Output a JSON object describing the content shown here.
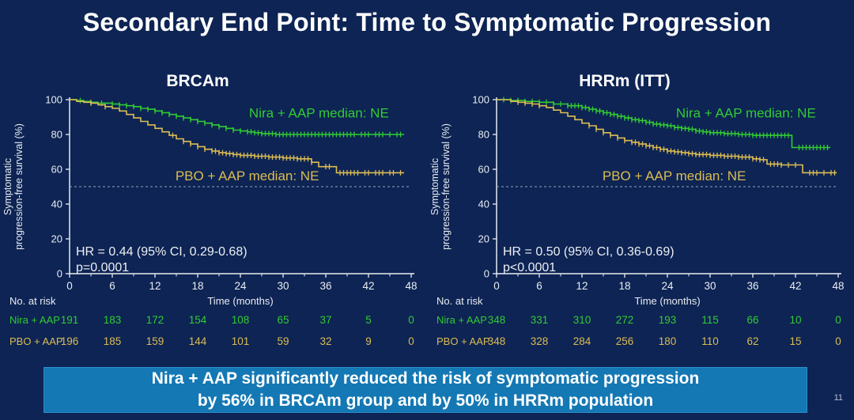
{
  "slide": {
    "title": "Secondary End Point: Time to Symptomatic Progression",
    "page_number": "11",
    "banner": {
      "line1": "Nira + AAP significantly reduced the risk of symptomatic progression",
      "line2": "by 56% in BRCAm group and by 50% in HRRm population"
    }
  },
  "colors": {
    "background": "#0D2454",
    "title_text": "#FFFFFF",
    "axis": "#E9ECF2",
    "annotation_text": "#EDEFF3",
    "nira_green": "#32CB32",
    "pbo_yellow": "#DCBC52",
    "reference_dash": "#98A4BA",
    "banner_bg": "#1478B4",
    "banner_text": "#FFFFFF"
  },
  "chart_data": [
    {
      "type": "line",
      "subtype": "kaplan-meier",
      "title": "BRCAm",
      "xlabel": "Time (months)",
      "ylabel": [
        "Symptomatic",
        "progression-free survival (%)"
      ],
      "xlim": [
        0,
        48
      ],
      "ylim": [
        0,
        100
      ],
      "xticks": [
        0,
        6,
        12,
        18,
        24,
        30,
        36,
        42,
        48
      ],
      "yticks": [
        0,
        20,
        40,
        60,
        80,
        100
      ],
      "grid": false,
      "reference_line_y": 50,
      "annotations": {
        "hr": "HR = 0.44 (95% CI, 0.29-0.68)",
        "p": "p=0.0001"
      },
      "series": [
        {
          "name": "Nira + AAP",
          "legend": "Nira + AAP median: NE",
          "median": "NE",
          "color_key": "nira_green",
          "points": [
            [
              0,
              100
            ],
            [
              1,
              99.5
            ],
            [
              2,
              99
            ],
            [
              3,
              98.5
            ],
            [
              4,
              98
            ],
            [
              6,
              97.5
            ],
            [
              7,
              97
            ],
            [
              8,
              96.5
            ],
            [
              9,
              96
            ],
            [
              10,
              95
            ],
            [
              11,
              94.5
            ],
            [
              12,
              93.5
            ],
            [
              13,
              92.5
            ],
            [
              14,
              91.5
            ],
            [
              15,
              90.5
            ],
            [
              16,
              89.5
            ],
            [
              17,
              88.5
            ],
            [
              18,
              87.5
            ],
            [
              19,
              86.5
            ],
            [
              20,
              85.5
            ],
            [
              21,
              84.5
            ],
            [
              22,
              83.5
            ],
            [
              23,
              82.5
            ],
            [
              24,
              82
            ],
            [
              25,
              81.5
            ],
            [
              26,
              81
            ],
            [
              27,
              80.5
            ],
            [
              29,
              80
            ],
            [
              47,
              80
            ]
          ],
          "censor_months": [
            1.5,
            3,
            4.5,
            6,
            7,
            8,
            9,
            10,
            11,
            12,
            13,
            14,
            15,
            16,
            17,
            18,
            19,
            20,
            21,
            22,
            23,
            24,
            25,
            25.5,
            26,
            26.5,
            27,
            27.5,
            28,
            28.5,
            29,
            29.5,
            30,
            30.5,
            31,
            31.5,
            32,
            32.5,
            33,
            33.5,
            34,
            34.5,
            35,
            35.5,
            36,
            36.5,
            37,
            37.5,
            38,
            38.5,
            39,
            39.5,
            40,
            41,
            41.5,
            42,
            43,
            43.5,
            44,
            45,
            46,
            46.5
          ]
        },
        {
          "name": "PBO + AAP",
          "legend": "PBO + AAP median: NE",
          "median": "NE",
          "color_key": "pbo_yellow",
          "points": [
            [
              0,
              100
            ],
            [
              1,
              99
            ],
            [
              2,
              98.5
            ],
            [
              3,
              98
            ],
            [
              4,
              97
            ],
            [
              5,
              96
            ],
            [
              6,
              95
            ],
            [
              7,
              93.5
            ],
            [
              8,
              91.5
            ],
            [
              9,
              89.5
            ],
            [
              10,
              87.5
            ],
            [
              11,
              85.5
            ],
            [
              12,
              83.5
            ],
            [
              13,
              81.5
            ],
            [
              14,
              79.5
            ],
            [
              15,
              77.5
            ],
            [
              16,
              76
            ],
            [
              17,
              74.5
            ],
            [
              18,
              73
            ],
            [
              19,
              71.5
            ],
            [
              20,
              70.5
            ],
            [
              21,
              69.5
            ],
            [
              22,
              69
            ],
            [
              23,
              68.5
            ],
            [
              24,
              68
            ],
            [
              26,
              67.5
            ],
            [
              28,
              67
            ],
            [
              30,
              66.5
            ],
            [
              32,
              66
            ],
            [
              34,
              64
            ],
            [
              35,
              61.5
            ],
            [
              37.5,
              58
            ],
            [
              47,
              58
            ]
          ],
          "censor_months": [
            3,
            5,
            14.5,
            16,
            17,
            18,
            19,
            20,
            20.5,
            21,
            21.5,
            22,
            22.5,
            23,
            23.5,
            24,
            24.5,
            25,
            25.5,
            26,
            26.5,
            27,
            27.5,
            28,
            28.5,
            29,
            29.5,
            30,
            30.5,
            31,
            31.5,
            32,
            32.5,
            33,
            33.5,
            34,
            36,
            36.5,
            38,
            38.5,
            39,
            39.5,
            40,
            40.5,
            41.5,
            42,
            43,
            43.5,
            44,
            45,
            45.5,
            46.5
          ]
        }
      ],
      "risk_table": {
        "label": "No. at risk",
        "time_points": [
          0,
          6,
          12,
          18,
          24,
          30,
          36,
          42,
          48
        ],
        "rows": [
          {
            "name": "Nira + AAP",
            "color_key": "nira_green",
            "values": [
              191,
              183,
              172,
              154,
              108,
              65,
              37,
              5,
              0
            ]
          },
          {
            "name": "PBO + AAP",
            "color_key": "pbo_yellow",
            "values": [
              196,
              185,
              159,
              144,
              101,
              59,
              32,
              9,
              0
            ]
          }
        ]
      }
    },
    {
      "type": "line",
      "subtype": "kaplan-meier",
      "title": "HRRm (ITT)",
      "xlabel": "Time (months)",
      "ylabel": [
        "Symptomatic",
        "progression-free survival (%)"
      ],
      "xlim": [
        0,
        48
      ],
      "ylim": [
        0,
        100
      ],
      "xticks": [
        0,
        6,
        12,
        18,
        24,
        30,
        36,
        42,
        48
      ],
      "yticks": [
        0,
        20,
        40,
        60,
        80,
        100
      ],
      "grid": false,
      "reference_line_y": 50,
      "annotations": {
        "hr": "HR = 0.50 (95% CI, 0.36-0.69)",
        "p": "p<0.0001"
      },
      "series": [
        {
          "name": "Nira + AAP",
          "legend": "Nira + AAP median: NE",
          "median": "NE",
          "color_key": "nira_green",
          "points": [
            [
              0,
              100
            ],
            [
              2,
              99.5
            ],
            [
              4,
              99
            ],
            [
              6,
              98.5
            ],
            [
              8,
              97.5
            ],
            [
              10,
              96.5
            ],
            [
              12,
              95.5
            ],
            [
              13,
              94.5
            ],
            [
              14,
              93.5
            ],
            [
              15,
              92.5
            ],
            [
              16,
              91.5
            ],
            [
              17,
              90.5
            ],
            [
              18,
              89.5
            ],
            [
              19,
              88.5
            ],
            [
              20,
              88
            ],
            [
              21,
              87
            ],
            [
              22,
              86
            ],
            [
              23,
              85.5
            ],
            [
              24,
              85
            ],
            [
              25,
              84
            ],
            [
              26,
              83.5
            ],
            [
              27,
              83
            ],
            [
              28,
              82
            ],
            [
              29,
              81.5
            ],
            [
              30,
              81
            ],
            [
              32,
              80.5
            ],
            [
              34,
              80
            ],
            [
              36,
              79.5
            ],
            [
              41.5,
              72.5
            ],
            [
              46.9,
              72.5
            ]
          ],
          "censor_months": [
            1,
            2,
            3,
            4,
            5,
            6,
            7,
            8,
            9,
            10,
            10.5,
            11,
            11.5,
            12,
            12.5,
            13,
            13.5,
            14,
            14.5,
            15,
            15.5,
            16,
            16.5,
            17,
            17.5,
            18,
            18.5,
            19,
            19.5,
            20,
            20.5,
            21,
            21.5,
            22,
            22.5,
            23,
            23.5,
            24,
            24.5,
            25,
            25.5,
            26,
            26.5,
            27,
            27.5,
            28,
            28.5,
            29,
            29.5,
            30,
            30.5,
            31,
            31.5,
            32,
            32.5,
            33,
            33.5,
            34,
            34.5,
            35,
            35.5,
            36,
            36.5,
            37,
            37.5,
            38,
            38.5,
            39,
            39.5,
            40,
            40.5,
            41,
            42.5,
            43,
            43.5,
            44,
            44.5,
            45,
            45.5,
            46,
            46.5
          ]
        },
        {
          "name": "PBO + AAP",
          "legend": "PBO + AAP median: NE",
          "median": "NE",
          "color_key": "pbo_yellow",
          "points": [
            [
              0,
              100
            ],
            [
              2,
              99
            ],
            [
              3,
              98.5
            ],
            [
              4,
              98
            ],
            [
              5,
              97.5
            ],
            [
              6,
              96.5
            ],
            [
              7,
              95.5
            ],
            [
              8,
              94
            ],
            [
              9,
              92.5
            ],
            [
              10,
              90.5
            ],
            [
              11,
              88.5
            ],
            [
              12,
              86.5
            ],
            [
              13,
              85
            ],
            [
              14,
              83
            ],
            [
              15,
              81
            ],
            [
              16,
              79.5
            ],
            [
              17,
              78
            ],
            [
              18,
              76.5
            ],
            [
              19,
              75.5
            ],
            [
              20,
              74.5
            ],
            [
              21,
              73.5
            ],
            [
              22,
              72.5
            ],
            [
              23,
              71.5
            ],
            [
              24,
              70.5
            ],
            [
              25,
              70
            ],
            [
              26,
              69.5
            ],
            [
              27,
              69
            ],
            [
              28,
              68.5
            ],
            [
              30,
              68
            ],
            [
              32,
              67.5
            ],
            [
              34,
              67
            ],
            [
              36,
              66
            ],
            [
              37,
              65.5
            ],
            [
              38,
              63
            ],
            [
              40,
              62.5
            ],
            [
              43,
              58
            ],
            [
              47.8,
              58
            ]
          ],
          "censor_months": [
            3,
            4,
            5,
            6,
            13,
            14,
            15,
            16,
            17,
            18,
            19,
            19.5,
            20,
            20.5,
            21,
            21.5,
            22,
            22.5,
            23,
            23.5,
            24,
            24.5,
            25,
            25.5,
            26,
            26.5,
            27,
            27.5,
            28,
            28.5,
            29,
            29.5,
            30,
            30.5,
            31,
            31.5,
            32,
            32.5,
            33,
            33.5,
            34,
            34.5,
            35,
            35.5,
            36,
            36.5,
            37,
            37.5,
            38.5,
            39,
            39.5,
            40,
            41,
            42,
            44,
            44.5,
            45,
            46,
            47,
            47.5
          ]
        }
      ],
      "risk_table": {
        "label": "No. at risk",
        "time_points": [
          0,
          6,
          12,
          18,
          24,
          30,
          36,
          42,
          48
        ],
        "rows": [
          {
            "name": "Nira + AAP",
            "color_key": "nira_green",
            "values": [
              348,
              331,
              310,
              272,
              193,
              115,
              66,
              10,
              0
            ]
          },
          {
            "name": "PBO + AAP",
            "color_key": "pbo_yellow",
            "values": [
              348,
              328,
              284,
              256,
              180,
              110,
              62,
              15,
              0
            ]
          }
        ]
      }
    }
  ]
}
